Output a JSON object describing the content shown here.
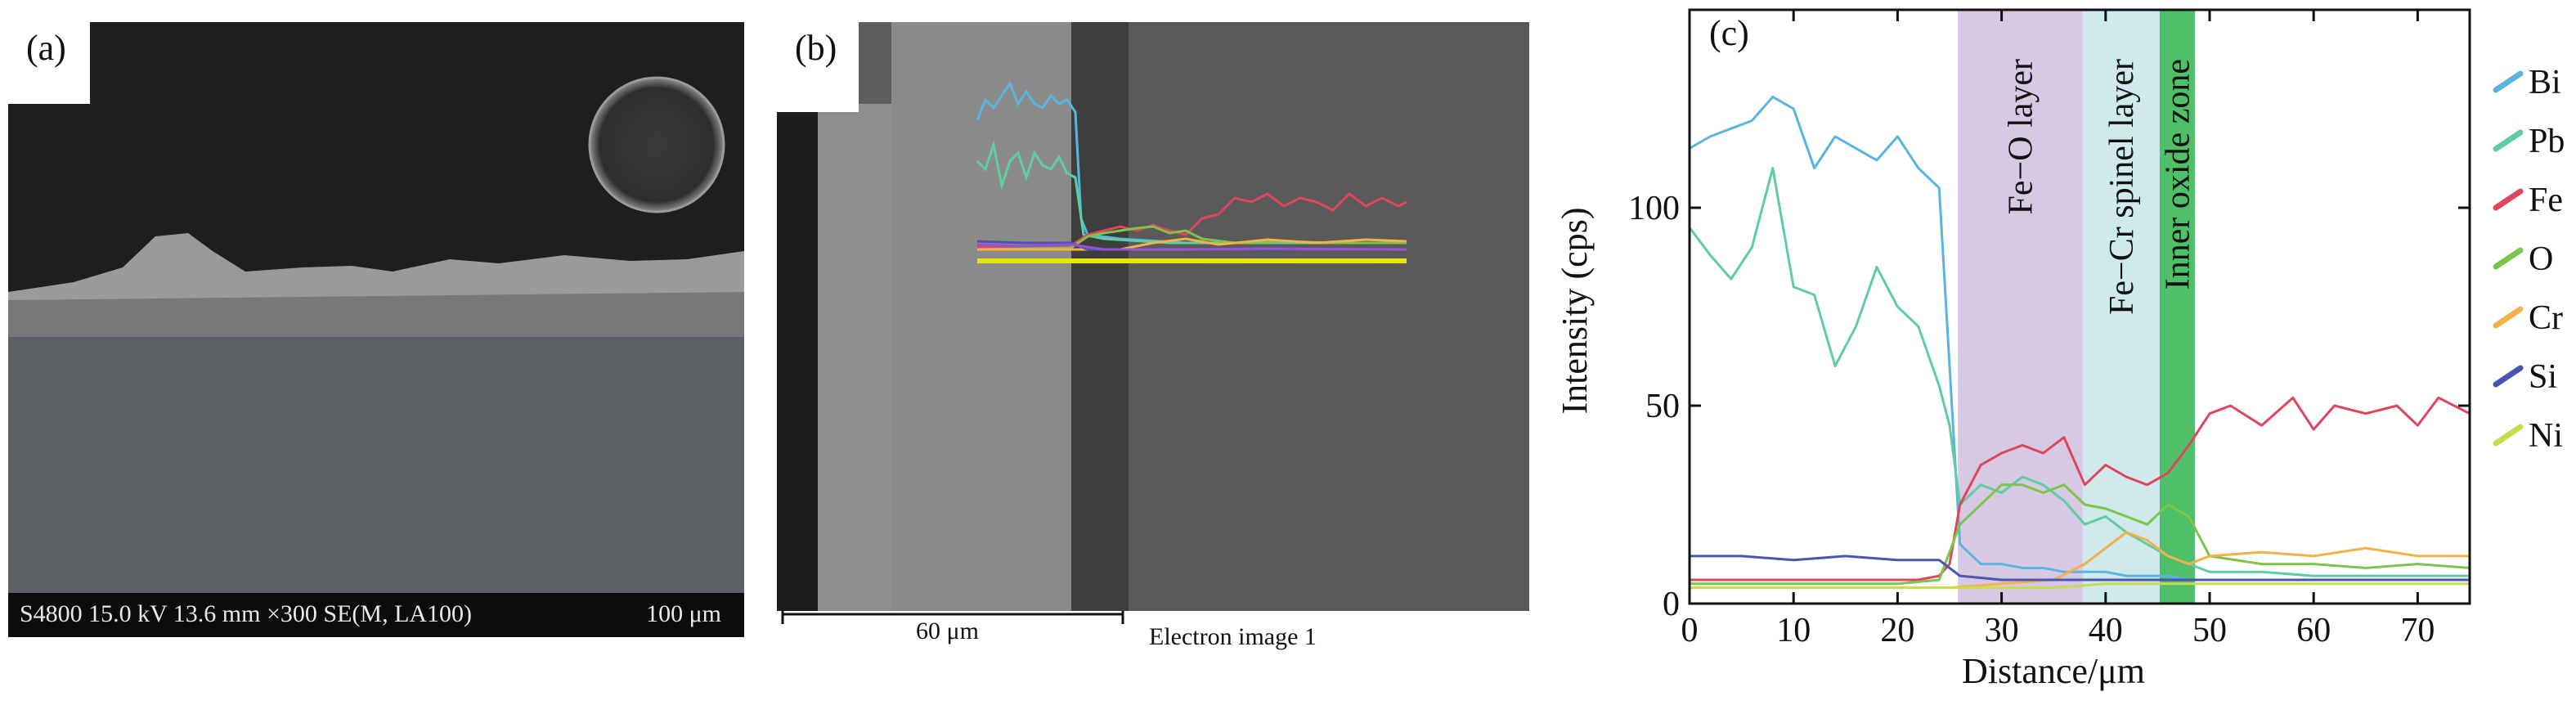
{
  "panels": {
    "a": {
      "label": "(a)",
      "info_bar": "S4800 15.0 kV 13.6 mm ×300 SE(M, LA100)",
      "scale_label": "100 μm"
    },
    "b": {
      "label": "(b)",
      "scale_label": "60 μm",
      "image_caption": "Electron image 1"
    }
  },
  "chart_data": {
    "type": "line",
    "panel_label": "(c)",
    "xlabel": "Distance/μm",
    "ylabel": "Intensity (cps)",
    "xlim": [
      0,
      75
    ],
    "ylim": [
      0,
      150
    ],
    "xticks": [
      0,
      10,
      20,
      30,
      40,
      50,
      60,
      70
    ],
    "yticks": [
      0,
      50,
      100
    ],
    "legend_position": "right",
    "regions": [
      {
        "label": "Fe−O layer",
        "x_start": 25.8,
        "x_end": 37.8,
        "color": "#d7c8e4"
      },
      {
        "label": "Fe−Cr spinel layer",
        "x_start": 37.8,
        "x_end": 45.2,
        "color": "#cfe9ec"
      },
      {
        "label": "Inner oxide zone",
        "x_start": 45.2,
        "x_end": 48.6,
        "color": "#4fbf6a"
      }
    ],
    "series": [
      {
        "name": "Bi",
        "color": "#5ab4e0",
        "x": [
          0,
          2,
          4,
          6,
          8,
          10,
          12,
          14,
          16,
          18,
          20,
          22,
          24,
          25,
          26,
          28,
          30,
          32,
          34,
          36,
          38,
          40,
          42,
          44,
          46,
          48,
          50,
          55,
          60,
          65,
          70,
          75
        ],
        "y": [
          115,
          118,
          120,
          122,
          128,
          125,
          110,
          118,
          115,
          112,
          118,
          110,
          105,
          60,
          15,
          10,
          10,
          9,
          9,
          8,
          8,
          8,
          7,
          7,
          7,
          6,
          6,
          6,
          6,
          6,
          6,
          6
        ]
      },
      {
        "name": "Pb",
        "color": "#5fcda0",
        "x": [
          0,
          2,
          4,
          6,
          8,
          10,
          12,
          14,
          16,
          18,
          20,
          22,
          24,
          25,
          26,
          28,
          30,
          32,
          34,
          36,
          38,
          40,
          42,
          44,
          46,
          48,
          50,
          55,
          60,
          65,
          70,
          75
        ],
        "y": [
          95,
          88,
          82,
          90,
          110,
          80,
          78,
          60,
          70,
          85,
          75,
          70,
          55,
          45,
          25,
          30,
          28,
          32,
          30,
          26,
          20,
          22,
          18,
          15,
          12,
          10,
          8,
          8,
          7,
          7,
          7,
          7
        ]
      },
      {
        "name": "Fe",
        "color": "#e0455e",
        "x": [
          0,
          2,
          4,
          6,
          8,
          10,
          12,
          14,
          16,
          18,
          20,
          22,
          24,
          25,
          26,
          28,
          30,
          32,
          34,
          36,
          38,
          40,
          42,
          44,
          46,
          48,
          50,
          52,
          55,
          58,
          60,
          62,
          65,
          68,
          70,
          72,
          75
        ],
        "y": [
          6,
          6,
          6,
          6,
          6,
          6,
          6,
          6,
          6,
          6,
          6,
          6,
          7,
          10,
          25,
          35,
          38,
          40,
          38,
          42,
          30,
          35,
          32,
          30,
          33,
          40,
          48,
          50,
          45,
          52,
          44,
          50,
          48,
          50,
          45,
          52,
          48
        ]
      },
      {
        "name": "O",
        "color": "#7cc44a",
        "x": [
          0,
          5,
          10,
          15,
          20,
          24,
          26,
          28,
          30,
          32,
          34,
          36,
          38,
          40,
          42,
          44,
          46,
          48,
          50,
          55,
          60,
          65,
          70,
          75
        ],
        "y": [
          5,
          5,
          5,
          5,
          5,
          6,
          20,
          25,
          30,
          30,
          28,
          30,
          25,
          24,
          22,
          20,
          25,
          22,
          12,
          10,
          10,
          9,
          10,
          9
        ]
      },
      {
        "name": "Cr",
        "color": "#f2b24a",
        "x": [
          0,
          5,
          10,
          15,
          20,
          25,
          30,
          35,
          38,
          40,
          42,
          44,
          46,
          48,
          50,
          55,
          60,
          65,
          70,
          75
        ],
        "y": [
          4,
          4,
          4,
          4,
          4,
          4,
          5,
          6,
          10,
          14,
          18,
          16,
          12,
          10,
          12,
          13,
          12,
          14,
          12,
          12
        ]
      },
      {
        "name": "Si",
        "color": "#4b55b0",
        "x": [
          0,
          5,
          10,
          15,
          20,
          24,
          26,
          30,
          35,
          40,
          45,
          50,
          55,
          60,
          65,
          70,
          75
        ],
        "y": [
          12,
          12,
          11,
          12,
          11,
          11,
          7,
          6,
          6,
          6,
          6,
          6,
          6,
          6,
          6,
          6,
          6
        ]
      },
      {
        "name": "Ni",
        "color": "#c8dc50",
        "x": [
          0,
          5,
          10,
          15,
          20,
          25,
          30,
          35,
          40,
          45,
          50,
          55,
          60,
          65,
          70,
          75
        ],
        "y": [
          4,
          4,
          4,
          4,
          4,
          4,
          4,
          4,
          5,
          5,
          5,
          5,
          5,
          5,
          5,
          5
        ]
      }
    ]
  }
}
